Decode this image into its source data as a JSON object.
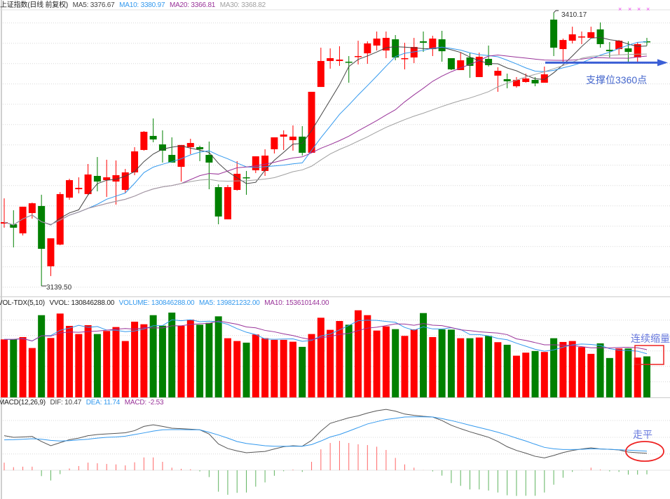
{
  "colors": {
    "up": "#ff0000",
    "down": "#008000",
    "ma5": "#444444",
    "ma10": "#3399ee",
    "ma20": "#993399",
    "ma30": "#a0a0a0",
    "hist_up": "#ff6666",
    "hist_down": "#5fb45f",
    "annotation_blue": "#3b5fd6",
    "annotation_red": "#ee2222",
    "marker": "#ee44ee"
  },
  "price_panel": {
    "title": "上证指数(日线 前复权)",
    "indicators": [
      {
        "label": "MA5: 3376.67",
        "key": "ma5"
      },
      {
        "label": "MA10: 3380.97",
        "key": "ma10"
      },
      {
        "label": "MA20: 3366.81",
        "key": "ma20"
      },
      {
        "label": "MA30: 3368.82",
        "key": "ma30"
      }
    ],
    "high_label": "3410.17",
    "low_label": "3139.50",
    "support_text": "支撑位3360点",
    "marker_glyph": "×"
  },
  "volume_panel": {
    "title": "VOL-TDX(5,10)",
    "indicators": [
      {
        "label": "VVOL: 130846288.00",
        "key": "ma5"
      },
      {
        "label": "VOLUME: 130846288.00",
        "key": "ma10"
      },
      {
        "label": "MA5: 139821232.00",
        "key": "ma10"
      },
      {
        "label": "MA10: 153610144.00",
        "key": "ma20"
      }
    ],
    "annotation": "连续缩量"
  },
  "macd_panel": {
    "title": "MACD(12,26,9)",
    "indicators": [
      {
        "label": "DIF: 10.47",
        "key": "ma5"
      },
      {
        "label": "DEA: 11.74",
        "key": "ma10"
      },
      {
        "label": "MACD: -2.53",
        "key": "ma20"
      }
    ],
    "annotation": "走平"
  },
  "chart_data": [
    {
      "type": "candlestick",
      "title": "上证指数(日线 前复权)",
      "moving_averages": [
        5,
        10,
        20,
        30
      ],
      "ylim": [
        3129.8,
        3413
      ],
      "grid": true,
      "support_level": 3360,
      "ohlc": [
        [
          3201.3,
          3226.3,
          3197.2,
          3202.7
        ],
        [
          3200.6,
          3214.5,
          3177.7,
          3197.2
        ],
        [
          3191.6,
          3218.0,
          3189.5,
          3218.0
        ],
        [
          3211.7,
          3222.1,
          3206.2,
          3221.4
        ],
        [
          3218.7,
          3229.8,
          3139.5,
          3176.3
        ],
        [
          3159.0,
          3186.7,
          3149.3,
          3186.7
        ],
        [
          3180.5,
          3232.5,
          3179.8,
          3230.5
        ],
        [
          3227.0,
          3245.7,
          3224.9,
          3244.3
        ],
        [
          3235.3,
          3247.1,
          3231.2,
          3236.7
        ],
        [
          3230.5,
          3260.3,
          3229.8,
          3249.9
        ],
        [
          3248.5,
          3267.2,
          3233.2,
          3242.9
        ],
        [
          3244.3,
          3264.5,
          3227.7,
          3247.1
        ],
        [
          3242.9,
          3263.8,
          3220.1,
          3249.2
        ],
        [
          3234.6,
          3255.4,
          3231.9,
          3252.0
        ],
        [
          3252.0,
          3277.0,
          3249.2,
          3272.8
        ],
        [
          3274.2,
          3292.9,
          3273.5,
          3292.2
        ],
        [
          3288.1,
          3305.4,
          3281.8,
          3284.6
        ],
        [
          3279.7,
          3293.6,
          3261.7,
          3273.5
        ],
        [
          3269.3,
          3286.7,
          3261.7,
          3261.7
        ],
        [
          3257.5,
          3279.1,
          3242.9,
          3279.1
        ],
        [
          3277.0,
          3285.3,
          3270.0,
          3281.1
        ],
        [
          3277.0,
          3278.4,
          3263.1,
          3274.9
        ],
        [
          3269.3,
          3282.5,
          3235.3,
          3261.7
        ],
        [
          3237.4,
          3240.1,
          3200.6,
          3208.3
        ],
        [
          3205.5,
          3239.5,
          3205.5,
          3237.4
        ],
        [
          3234.6,
          3263.1,
          3233.9,
          3250.6
        ],
        [
          3247.1,
          3253.4,
          3229.8,
          3246.4
        ],
        [
          3254.1,
          3267.9,
          3251.3,
          3267.9
        ],
        [
          3253.4,
          3274.9,
          3248.5,
          3268.6
        ],
        [
          3274.9,
          3286.7,
          3270.7,
          3286.7
        ],
        [
          3287.4,
          3293.6,
          3274.2,
          3289.5
        ],
        [
          3283.9,
          3298.5,
          3273.5,
          3287.4
        ],
        [
          3287.4,
          3297.8,
          3268.6,
          3271.4
        ],
        [
          3271.4,
          3331.8,
          3271.4,
          3331.8
        ],
        [
          3336.6,
          3375.5,
          3336.6,
          3362.3
        ],
        [
          3362.3,
          3374.8,
          3354.7,
          3365.1
        ],
        [
          3362.3,
          3376.9,
          3357.5,
          3363.7
        ],
        [
          3361.6,
          3367.2,
          3340.8,
          3360.9
        ],
        [
          3366.5,
          3382.4,
          3358.9,
          3367.2
        ],
        [
          3369.9,
          3381.8,
          3359.5,
          3379.7
        ],
        [
          3377.6,
          3391.5,
          3372.7,
          3384.5
        ],
        [
          3372.7,
          3391.5,
          3365.1,
          3385.2
        ],
        [
          3383.8,
          3388.0,
          3363.0,
          3365.8
        ],
        [
          3364.4,
          3380.4,
          3354.0,
          3365.1
        ],
        [
          3365.8,
          3385.2,
          3360.2,
          3376.2
        ],
        [
          3381.8,
          3391.5,
          3371.3,
          3380.4
        ],
        [
          3374.1,
          3387.3,
          3367.2,
          3384.5
        ],
        [
          3383.8,
          3392.2,
          3361.6,
          3372.0
        ],
        [
          3365.1,
          3365.1,
          3353.3,
          3354.0
        ],
        [
          3353.3,
          3370.6,
          3353.3,
          3363.0
        ],
        [
          3365.8,
          3370.6,
          3345.7,
          3357.5
        ],
        [
          3346.4,
          3370.6,
          3346.4,
          3366.5
        ],
        [
          3364.4,
          3377.6,
          3356.8,
          3358.2
        ],
        [
          3347.8,
          3356.1,
          3331.8,
          3352.6
        ],
        [
          3344.3,
          3349.8,
          3335.3,
          3342.2
        ],
        [
          3337.3,
          3346.4,
          3335.9,
          3343.6
        ],
        [
          3341.5,
          3349.8,
          3340.8,
          3345.0
        ],
        [
          3343.6,
          3346.4,
          3337.3,
          3340.1
        ],
        [
          3340.8,
          3356.8,
          3340.8,
          3349.1
        ],
        [
          3403.3,
          3410.17,
          3367.2,
          3375.5
        ],
        [
          3374.1,
          3384.5,
          3360.2,
          3383.1
        ],
        [
          3382.4,
          3396.3,
          3379.7,
          3388.7
        ],
        [
          3385.9,
          3391.5,
          3379.0,
          3386.6
        ],
        [
          3385.2,
          3396.3,
          3385.2,
          3390.8
        ],
        [
          3393.6,
          3400.5,
          3375.5,
          3379.0
        ],
        [
          3373.4,
          3381.1,
          3365.8,
          3372.0
        ],
        [
          3374.1,
          3383.1,
          3368.6,
          3382.4
        ],
        [
          3374.8,
          3381.8,
          3361.6,
          3371.3
        ],
        [
          3365.8,
          3381.1,
          3360.2,
          3379.0
        ],
        [
          3381.8,
          3385.2,
          3377.6,
          3381.1
        ]
      ]
    },
    {
      "type": "bar",
      "title": "VOL-TDX(5,10)",
      "moving_averages": [
        5,
        10
      ],
      "ylim": [
        0,
        284000000
      ],
      "values": [
        185000000,
        185000000,
        192400000,
        157500000,
        262300000,
        189500000,
        267500000,
        228100000,
        202100000,
        230300000,
        202100000,
        211800000,
        224400000,
        179800000,
        241500000,
        233300000,
        262300000,
        228800000,
        270500000,
        228100000,
        248200000,
        231800000,
        237800000,
        258600000,
        188700000,
        179800000,
        174600000,
        200600000,
        188700000,
        183500000,
        183500000,
        177600000,
        161200000,
        202100000,
        254100000,
        215500000,
        243700000,
        231800000,
        277900000,
        262300000,
        213200000,
        226600000,
        217700000,
        196200000,
        217000000,
        269000000,
        192400000,
        217000000,
        216200000,
        188700000,
        188700000,
        191000000,
        196200000,
        176100000,
        167900000,
        133000000,
        142700000,
        147900000,
        144900000,
        188700000,
        176800000,
        179800000,
        160500000,
        138900000,
        172400000,
        125600000,
        156000000,
        156000000,
        127100000,
        130846288
      ]
    },
    {
      "type": "line",
      "title": "MACD(12,26,9)",
      "ylim": [
        -17.7,
        38.4
      ],
      "dif": [
        21.3,
        20.3,
        20.5,
        20.8,
        17.7,
        15.1,
        17.0,
        18.8,
        19.8,
        21.3,
        22.0,
        22.4,
        22.7,
        23.1,
        24.4,
        27.0,
        28.0,
        27.0,
        25.9,
        25.6,
        25.3,
        24.9,
        22.3,
        16.2,
        13.4,
        11.9,
        10.8,
        11.2,
        11.6,
        13.1,
        14.5,
        15.1,
        14.8,
        18.4,
        24.1,
        28.9,
        30.6,
        32.3,
        33.5,
        35.2,
        36.6,
        37.5,
        36.4,
        34.6,
        33.8,
        33.2,
        32.8,
        30.6,
        27.7,
        25.6,
        23.7,
        22.0,
        20.3,
        17.7,
        14.5,
        12.2,
        10.5,
        8.6,
        7.6,
        9.1,
        10.9,
        12.2,
        13.1,
        13.8,
        13.1,
        12.9,
        12.5,
        11.2,
        10.8,
        10.47
      ],
      "dea": [
        18.7,
        18.8,
        19.1,
        19.4,
        19.1,
        18.4,
        18.0,
        18.2,
        18.7,
        19.1,
        19.8,
        20.3,
        20.5,
        21.0,
        22.0,
        23.0,
        24.1,
        24.9,
        25.0,
        25.0,
        24.9,
        24.9,
        23.4,
        21.7,
        19.8,
        17.7,
        16.5,
        15.8,
        15.1,
        14.8,
        14.8,
        14.8,
        14.8,
        15.8,
        18.0,
        20.5,
        22.0,
        24.1,
        26.3,
        28.5,
        29.9,
        31.3,
        32.0,
        32.8,
        32.9,
        32.9,
        32.8,
        31.8,
        30.6,
        29.2,
        27.7,
        26.3,
        24.9,
        23.4,
        21.7,
        19.8,
        18.0,
        16.0,
        14.1,
        13.2,
        12.8,
        12.8,
        12.9,
        13.2,
        13.1,
        12.9,
        12.6,
        12.4,
        12.1,
        11.74
      ],
      "macd": [
        4.7,
        1.9,
        2.2,
        2.2,
        -3.6,
        -6.3,
        -2.4,
        1.1,
        2.6,
        4.7,
        4.3,
        3.9,
        3.6,
        3.0,
        4.9,
        7.9,
        7.9,
        5.2,
        1.6,
        0.9,
        0.6,
        -0.7,
        -4.2,
        -13.2,
        -15.1,
        -13.9,
        -13.7,
        -10.1,
        -7.5,
        -3.4,
        -0.6,
        0.4,
        -1.0,
        5.2,
        12.9,
        16.8,
        18.1,
        16.8,
        16.0,
        15.5,
        14.5,
        12.5,
        7.6,
        3.6,
        1.6,
        0.1,
        -0.7,
        -3.3,
        -7.9,
        -9.6,
        -11.8,
        -11.8,
        -12.5,
        -13.7,
        -15.4,
        -15.8,
        -15.7,
        -15.7,
        -13.7,
        -8.9,
        -4.6,
        -1.0,
        0.1,
        1.6,
        0.4,
        -0.7,
        -1.0,
        -2.7,
        -2.7,
        -2.53
      ]
    }
  ]
}
